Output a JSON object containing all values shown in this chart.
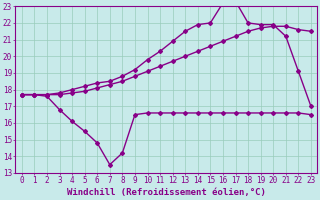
{
  "xlabel": "Windchill (Refroidissement éolien,°C)",
  "xlim": [
    -0.5,
    23.5
  ],
  "ylim": [
    13,
    23
  ],
  "yticks": [
    13,
    14,
    15,
    16,
    17,
    18,
    19,
    20,
    21,
    22,
    23
  ],
  "xticks": [
    0,
    1,
    2,
    3,
    4,
    5,
    6,
    7,
    8,
    9,
    10,
    11,
    12,
    13,
    14,
    15,
    16,
    17,
    18,
    19,
    20,
    21,
    22,
    23
  ],
  "bg_color": "#c8eaea",
  "grid_color": "#99ccbb",
  "line_color": "#880088",
  "line1_x": [
    0,
    1,
    2,
    3,
    4,
    5,
    6,
    7,
    8,
    9,
    10,
    11,
    12,
    13,
    14,
    15,
    16,
    17,
    18,
    19,
    20,
    21,
    22,
    23
  ],
  "line1_y": [
    17.7,
    17.7,
    17.7,
    17.8,
    18.0,
    18.2,
    18.4,
    18.5,
    18.8,
    19.2,
    19.8,
    20.3,
    20.9,
    21.5,
    21.9,
    22.0,
    23.2,
    23.3,
    22.0,
    21.9,
    21.9,
    21.2,
    19.1,
    17.0
  ],
  "line2_x": [
    0,
    1,
    2,
    3,
    4,
    5,
    6,
    7,
    8,
    9,
    10,
    11,
    12,
    13,
    14,
    15,
    16,
    17,
    18,
    19,
    20,
    21,
    22,
    23
  ],
  "line2_y": [
    17.7,
    17.7,
    17.7,
    17.7,
    17.8,
    17.9,
    18.1,
    18.3,
    18.5,
    18.8,
    19.1,
    19.4,
    19.7,
    20.0,
    20.3,
    20.6,
    20.9,
    21.2,
    21.5,
    21.7,
    21.8,
    21.8,
    21.6,
    21.5
  ],
  "line3_x": [
    0,
    1,
    2,
    3,
    4,
    5,
    6,
    7,
    8,
    9,
    10,
    11,
    12,
    13,
    14,
    15,
    16,
    17,
    18,
    19,
    20,
    21,
    22,
    23
  ],
  "line3_y": [
    17.7,
    17.7,
    17.6,
    16.8,
    16.1,
    15.5,
    14.8,
    13.5,
    14.2,
    16.5,
    16.6,
    16.6,
    16.6,
    16.6,
    16.6,
    16.6,
    16.6,
    16.6,
    16.6,
    16.6,
    16.6,
    16.6,
    16.6,
    16.5
  ],
  "marker": "D",
  "markersize": 2,
  "linewidth": 1.0,
  "tick_fontsize": 5.5,
  "label_fontsize": 6.5,
  "fig_bg": "#c8eaea"
}
